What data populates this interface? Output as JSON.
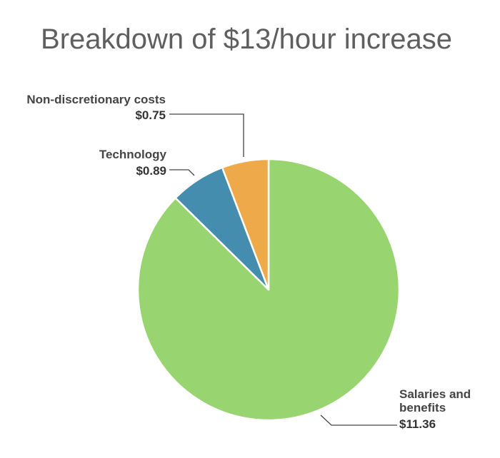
{
  "chart_data": {
    "type": "pie",
    "title": "Breakdown of $13/hour increase",
    "slices": [
      {
        "label_lines": [
          "Salaries and",
          "benefits"
        ],
        "value": 11.36,
        "value_label": "$11.36",
        "color": "#98d46f"
      },
      {
        "label_lines": [
          "Technology"
        ],
        "value": 0.89,
        "value_label": "$0.89",
        "color": "#448daf"
      },
      {
        "label_lines": [
          "Non-discretionary costs"
        ],
        "value": 0.75,
        "value_label": "$0.75",
        "color": "#eeaa4a"
      }
    ],
    "start_angle_deg": 0,
    "direction": "clockwise",
    "legend": "none",
    "label_style": "callout-lines"
  }
}
